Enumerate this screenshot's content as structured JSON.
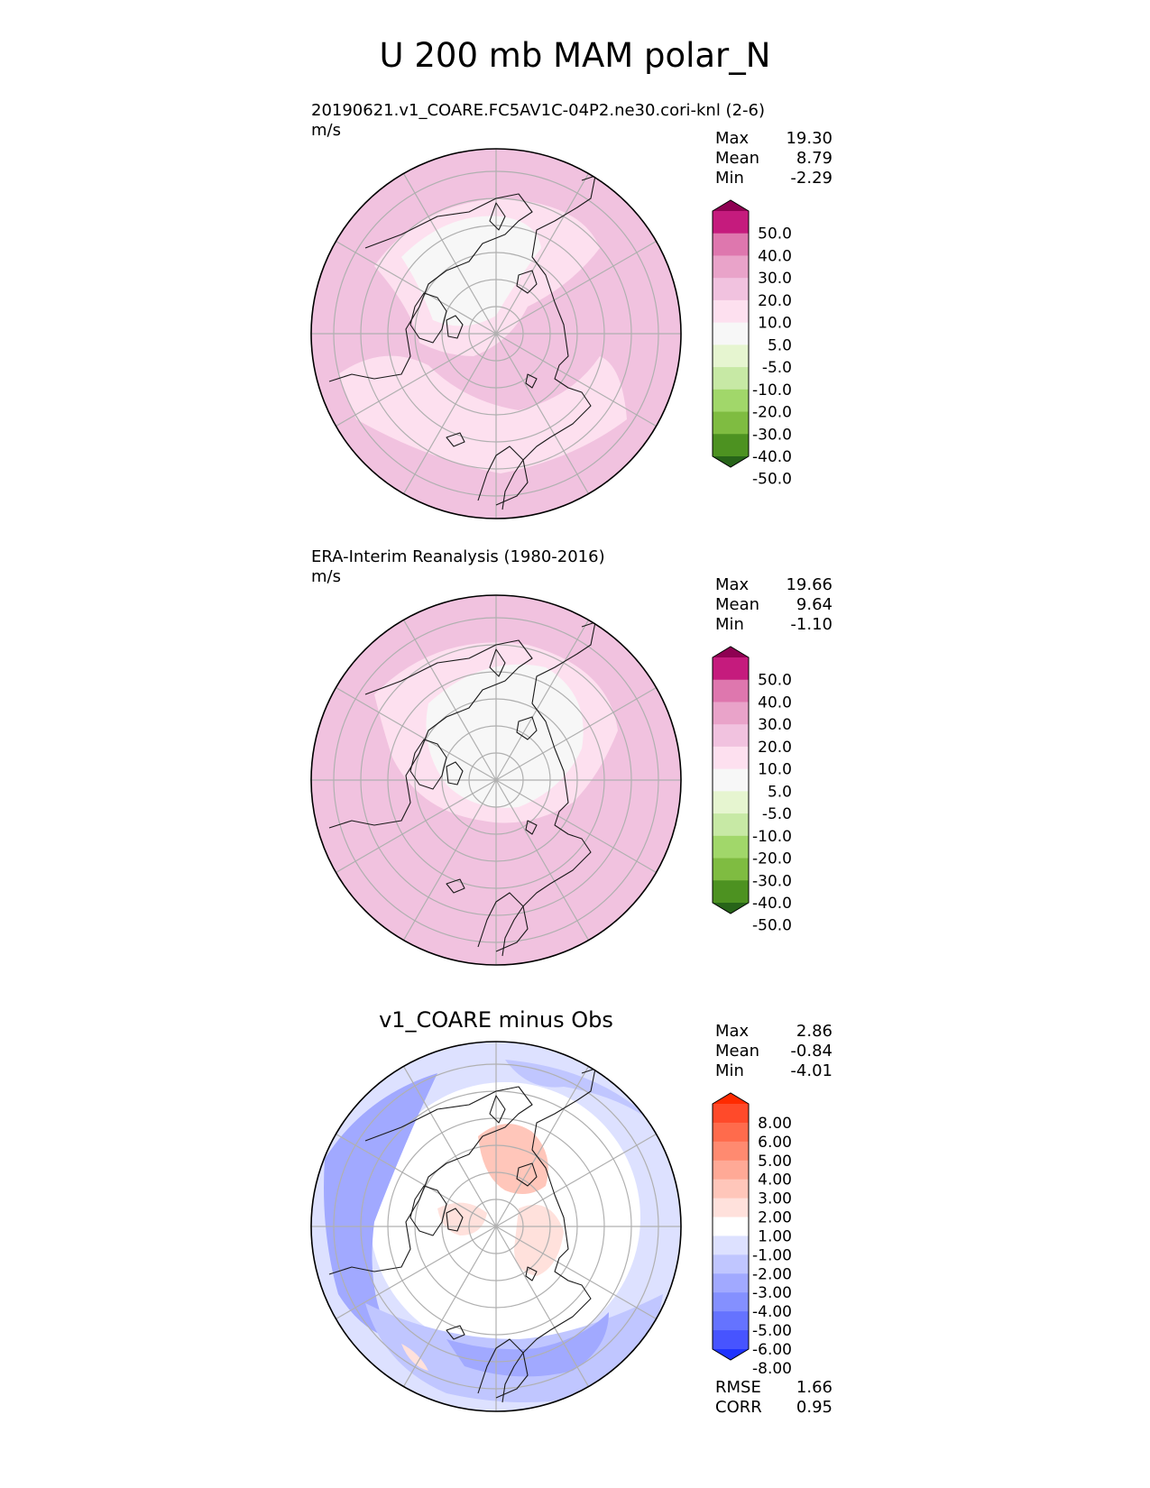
{
  "chart_data": {
    "type": "heatmap",
    "title": "U 200 mb MAM polar_N",
    "projection": "north polar stereographic",
    "panels": [
      {
        "id": "test",
        "title": "20190621.v1_COARE.FC5AV1C-04P2.ne30.cori-knl (2-6)",
        "units": "m/s",
        "stats": [
          {
            "label": "Max",
            "value": "19.30"
          },
          {
            "label": "Mean",
            "value": "8.79"
          },
          {
            "label": "Min",
            "value": "-2.29"
          }
        ],
        "colorbar": {
          "levels": [
            "50.0",
            "40.0",
            "30.0",
            "20.0",
            "10.0",
            "5.0",
            "-5.0",
            "-10.0",
            "-20.0",
            "-30.0",
            "-40.0",
            "-50.0"
          ],
          "colors": [
            "#8e0152",
            "#c51b7d",
            "#de77ae",
            "#e9a3c9",
            "#f1c2df",
            "#fde0ef",
            "#f7f7f7",
            "#e6f5d0",
            "#c7e9a5",
            "#a1d76a",
            "#7fbc41",
            "#4d9221",
            "#276419"
          ]
        }
      },
      {
        "id": "reference",
        "title": "ERA-Interim Reanalysis (1980-2016)",
        "units": "m/s",
        "stats": [
          {
            "label": "Max",
            "value": "19.66"
          },
          {
            "label": "Mean",
            "value": "9.64"
          },
          {
            "label": "Min",
            "value": "-1.10"
          }
        ],
        "colorbar": {
          "levels": [
            "50.0",
            "40.0",
            "30.0",
            "20.0",
            "10.0",
            "5.0",
            "-5.0",
            "-10.0",
            "-20.0",
            "-30.0",
            "-40.0",
            "-50.0"
          ],
          "colors": [
            "#8e0152",
            "#c51b7d",
            "#de77ae",
            "#e9a3c9",
            "#f1c2df",
            "#fde0ef",
            "#f7f7f7",
            "#e6f5d0",
            "#c7e9a5",
            "#a1d76a",
            "#7fbc41",
            "#4d9221",
            "#276419"
          ]
        }
      },
      {
        "id": "difference",
        "title": "v1_COARE minus Obs",
        "stats": [
          {
            "label": "Max",
            "value": "2.86"
          },
          {
            "label": "Mean",
            "value": "-0.84"
          },
          {
            "label": "Min",
            "value": "-4.01"
          }
        ],
        "metrics": [
          {
            "label": "RMSE",
            "value": "1.66"
          },
          {
            "label": "CORR",
            "value": "0.95"
          }
        ],
        "colorbar": {
          "levels": [
            "8.00",
            "6.00",
            "5.00",
            "4.00",
            "3.00",
            "2.00",
            "1.00",
            "-1.00",
            "-2.00",
            "-3.00",
            "-4.00",
            "-5.00",
            "-6.00",
            "-8.00"
          ],
          "colors": [
            "#ff2a00",
            "#ff4a2a",
            "#ff6b4c",
            "#ff8a70",
            "#ffa996",
            "#ffc6ba",
            "#ffe1dc",
            "#ffffff",
            "#dde1ff",
            "#c0c6ff",
            "#a1a9ff",
            "#8490ff",
            "#6573ff",
            "#4754ff",
            "#1f33ff"
          ]
        }
      }
    ]
  }
}
